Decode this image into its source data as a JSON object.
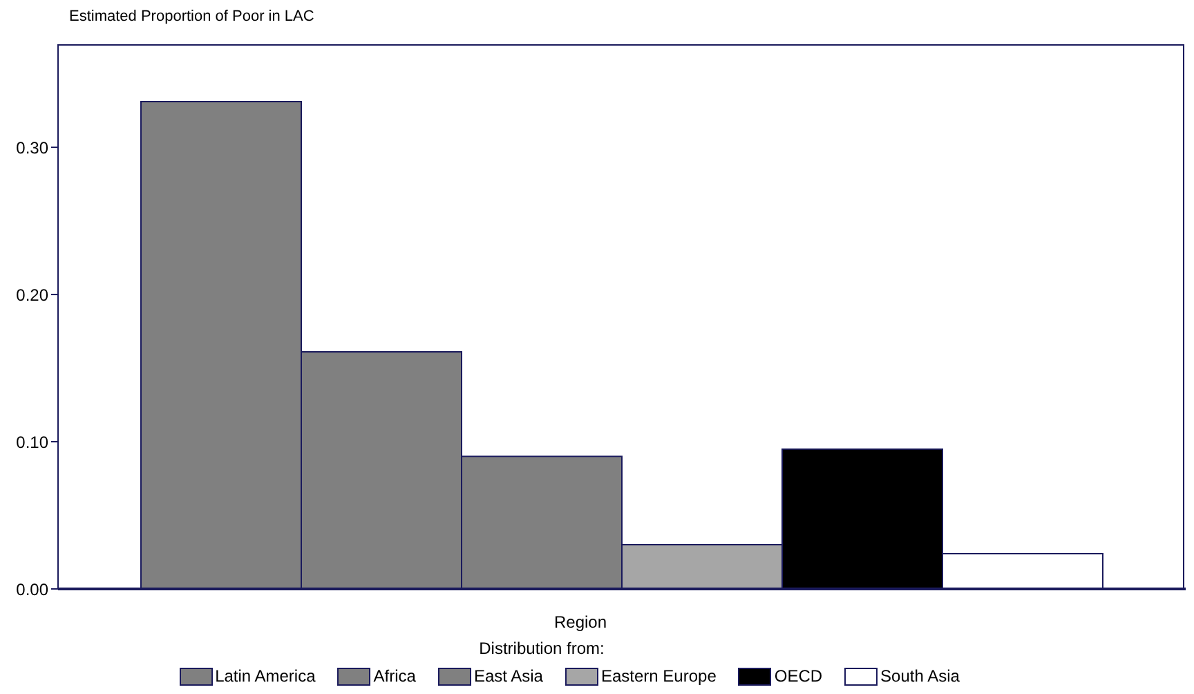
{
  "chart_data": {
    "type": "bar",
    "title": "Estimated Proportion of Poor in LAC",
    "xlabel": "Region",
    "legend_title": "Distribution from:",
    "categories": [
      null
    ],
    "series": [
      {
        "name": "Latin America",
        "color": "#808080",
        "values": [
          0.331
        ]
      },
      {
        "name": "Africa",
        "color": "#808080",
        "values": [
          0.161
        ]
      },
      {
        "name": "East Asia",
        "color": "#808080",
        "values": [
          0.09
        ]
      },
      {
        "name": "Eastern Europe",
        "color": "#a6a6a6",
        "values": [
          0.03
        ]
      },
      {
        "name": "OECD",
        "color": "#000000",
        "values": [
          0.095
        ]
      },
      {
        "name": "South Asia",
        "color": "#ffffff",
        "values": [
          0.024
        ]
      }
    ],
    "ylim": [
      0,
      0.37
    ],
    "yticks": [
      {
        "value": 0,
        "label": "0.00"
      },
      {
        "value": 0.1,
        "label": "0.10"
      },
      {
        "value": 0.2,
        "label": "0.20"
      },
      {
        "value": 0.3,
        "label": "0.30"
      }
    ],
    "grid": false,
    "legend": "bottom"
  }
}
